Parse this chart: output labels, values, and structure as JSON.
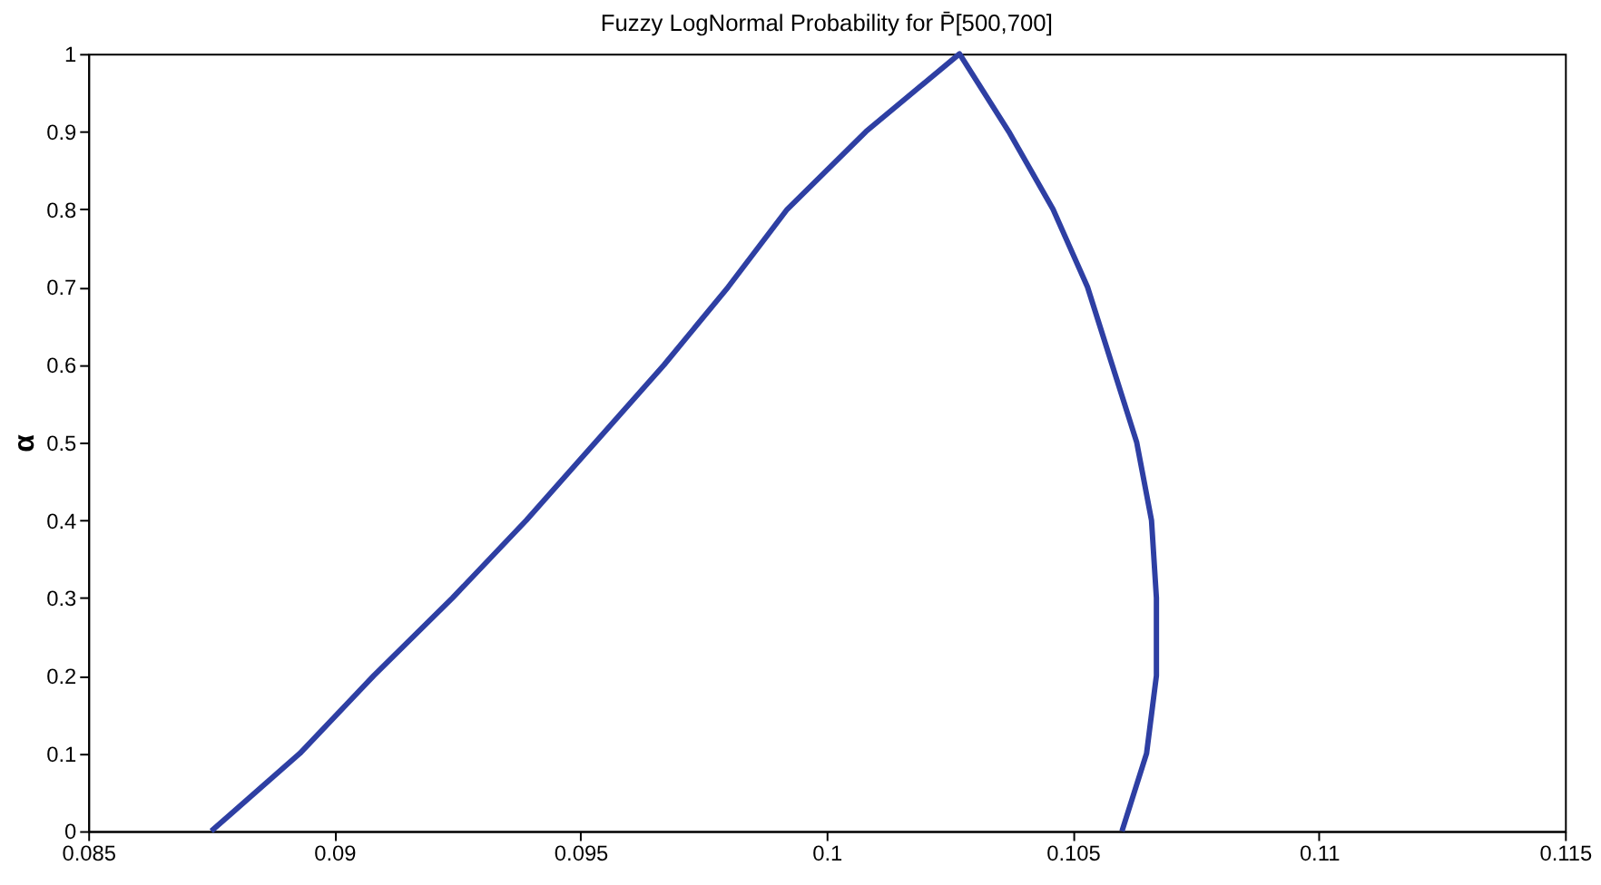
{
  "chart_data": {
    "type": "line",
    "title": "Fuzzy LogNormal Probability for P̄[500,700]",
    "ylabel": "α",
    "series": [
      {
        "color": "#2e3fa3",
        "x": [
          0.0875,
          0.0893,
          0.0908,
          0.0924,
          0.0939,
          0.0953,
          0.0967,
          0.098,
          0.0992,
          0.1008,
          0.1027,
          0.1037,
          0.1046,
          0.1053,
          0.1058,
          0.1063,
          0.1066,
          0.1067,
          0.1067,
          0.1065,
          0.106
        ],
        "values": [
          0,
          0.1,
          0.2,
          0.3,
          0.4,
          0.5,
          0.6,
          0.7,
          0.8,
          0.9,
          1,
          0.9,
          0.8,
          0.7,
          0.6,
          0.5,
          0.4,
          0.3,
          0.2,
          0.1,
          0
        ]
      }
    ],
    "xlim": [
      0.085,
      0.115
    ],
    "xticks": [
      0.085,
      0.09,
      0.095,
      0.1,
      0.105,
      0.11,
      0.115
    ],
    "ylim": [
      0,
      1
    ],
    "yticks": [
      0,
      0.1,
      0.2,
      0.3,
      0.4,
      0.5,
      0.6,
      0.7,
      0.8,
      0.9,
      1
    ],
    "grid": false,
    "legend": false,
    "marker": "none",
    "line_style": "solid"
  }
}
